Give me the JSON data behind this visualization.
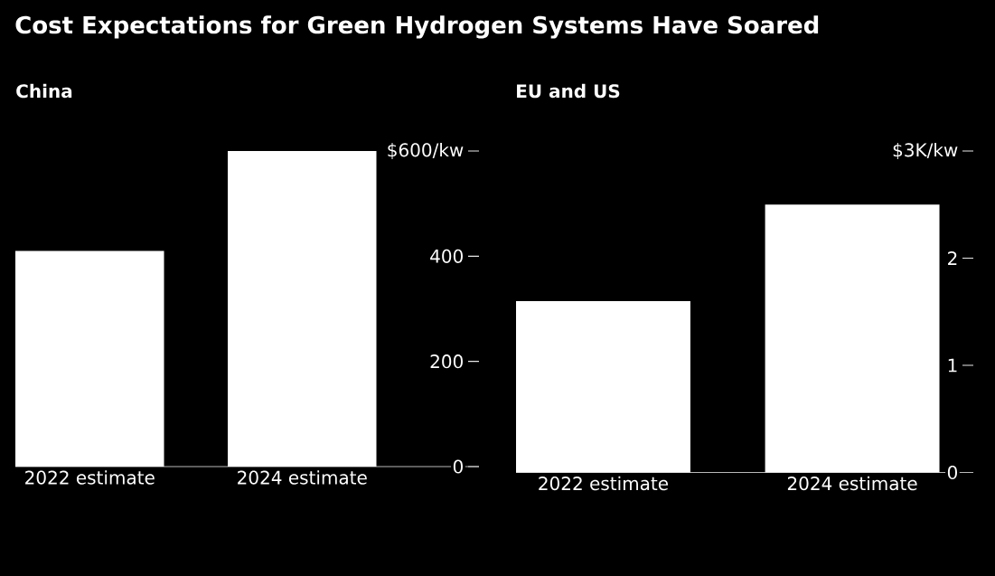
{
  "chart_data": [
    {
      "type": "bar",
      "title": "Cost Expectations for Green Hydrogen Systems Have Soared",
      "subtitle": "China",
      "categories": [
        "2022 estimate",
        "2024 estimate"
      ],
      "values": [
        410,
        600
      ],
      "color": "#ffffff",
      "ylim": [
        0,
        600
      ],
      "yticks": [
        0,
        200,
        400,
        {
          "value": 600,
          "label": "$600/kw"
        }
      ]
    },
    {
      "type": "bar",
      "subtitle": "EU and US",
      "categories": [
        "2022 estimate",
        "2024 estimate"
      ],
      "values": [
        1.6,
        2.5
      ],
      "color": "#ffffff",
      "ylim": [
        0,
        3
      ],
      "yticks": [
        0,
        1,
        2,
        {
          "value": 3,
          "label": "$3K/kw"
        }
      ]
    }
  ]
}
